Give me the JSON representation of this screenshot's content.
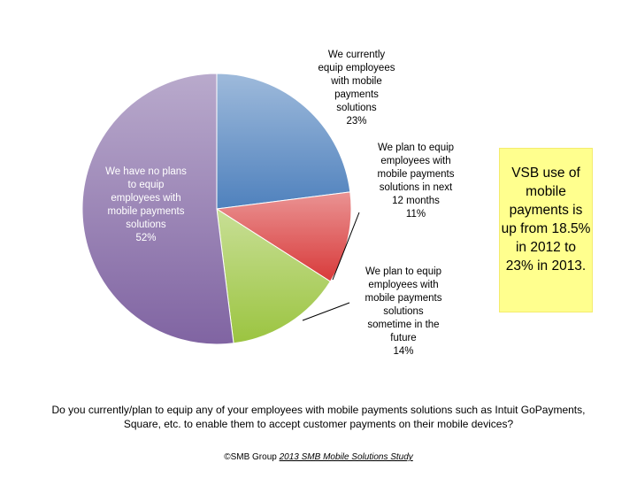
{
  "chart_data": {
    "type": "pie",
    "slices": [
      {
        "label": [
          "We currently",
          "equip employees",
          "with mobile",
          "payments",
          "solutions",
          "23%"
        ],
        "value": 23,
        "color": "#4f81bd"
      },
      {
        "label": [
          "We plan to equip",
          "employees with",
          "mobile payments",
          "solutions in next",
          "12 months",
          "11%"
        ],
        "value": 11,
        "color": "#d83a3a"
      },
      {
        "label": [
          "We plan to equip",
          "employees with",
          "mobile payments",
          "solutions",
          "sometime in the",
          "future",
          "14%"
        ],
        "value": 14,
        "color": "#9bc440"
      },
      {
        "label": [
          "We have no plans",
          "to equip",
          "employees with",
          "mobile payments",
          "solutions",
          "52%"
        ],
        "value": 52,
        "color": "#8064a2"
      }
    ],
    "start_angle_deg": 0,
    "direction": "clockwise"
  },
  "callout": {
    "lines": [
      "VSB use of",
      "mobile",
      "payments is",
      "up from 18.5%",
      "in 2012 to",
      "23% in 2013."
    ],
    "color": "#ffff8e"
  },
  "question": "Do you currently/plan to equip any of your employees with mobile payments solutions such as Intuit GoPayments, Square, etc. to enable them to accept customer payments on their mobile devices?",
  "source": {
    "prefix": "©SMB Group ",
    "study": "2013 SMB Mobile Solutions Study"
  }
}
